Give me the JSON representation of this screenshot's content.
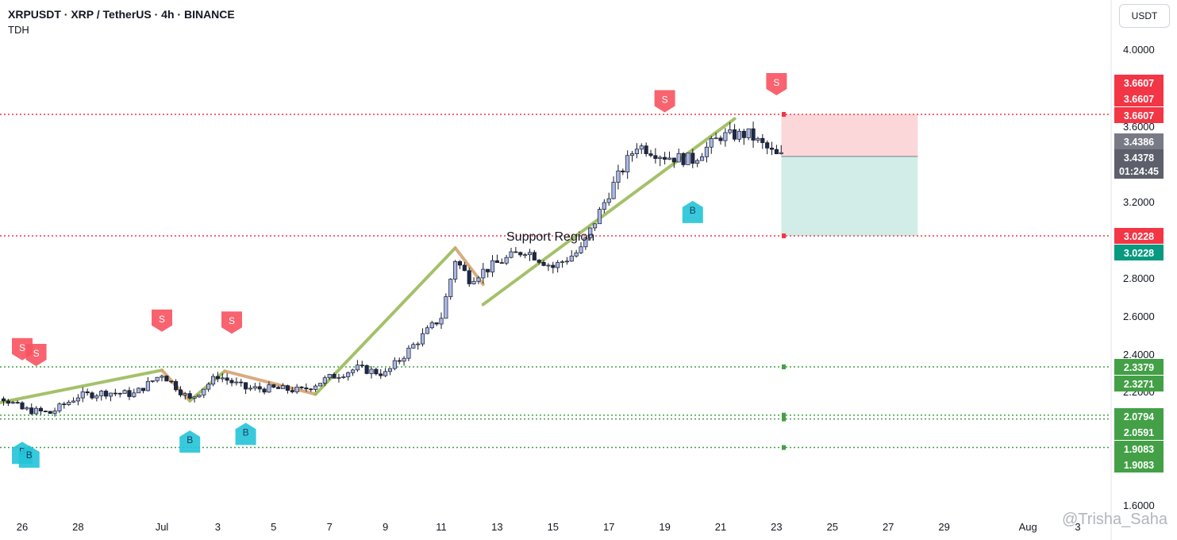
{
  "header": {
    "title": "XRPUSDT · XRP / TetherUS · 4h · BINANCE",
    "indicator": "TDH"
  },
  "axis": {
    "unit_label": "USDT"
  },
  "watermark": "@Trisha_Saha",
  "chart_data": {
    "type": "candlestick",
    "symbol": "XRPUSDT",
    "timeframe": "4h",
    "exchange": "BINANCE",
    "x_ticks": [
      "26",
      "28",
      "Jul",
      "3",
      "5",
      "7",
      "9",
      "11",
      "13",
      "15",
      "17",
      "19",
      "21",
      "23",
      "25",
      "27",
      "29",
      "Aug",
      "3"
    ],
    "y_ticks": [
      "4.0000",
      "3.6000",
      "3.2000",
      "2.8000",
      "2.6000",
      "2.4000",
      "2.2000",
      "1.6000"
    ],
    "y_range": [
      1.55,
      4.1
    ],
    "price_path": [
      [
        "Jun 24",
        2.195
      ],
      [
        "Jun 25",
        2.2
      ],
      [
        "Jun 26",
        2.11
      ],
      [
        "Jun 27",
        2.09
      ],
      [
        "Jun 28",
        2.18
      ],
      [
        "Jun 29",
        2.2
      ],
      [
        "Jun 30",
        2.19
      ],
      [
        "Jul 1",
        2.3
      ],
      [
        "Jul 2",
        2.16
      ],
      [
        "Jul 3",
        2.29
      ],
      [
        "Jul 4",
        2.22
      ],
      [
        "Jul 5",
        2.22
      ],
      [
        "Jul 6",
        2.21
      ],
      [
        "Jul 7",
        2.28
      ],
      [
        "Jul 8",
        2.33
      ],
      [
        "Jul 9",
        2.3
      ],
      [
        "Jul 10",
        2.45
      ],
      [
        "Jul 11",
        2.6
      ],
      [
        "Jul 11 12:00",
        2.9
      ],
      [
        "Jul 12",
        2.8
      ],
      [
        "Jul 13",
        2.88
      ],
      [
        "Jul 14",
        2.95
      ],
      [
        "Jul 15",
        2.86
      ],
      [
        "Jul 16",
        2.95
      ],
      [
        "Jul 17",
        3.25
      ],
      [
        "Jul 18",
        3.5
      ],
      [
        "Jul 19",
        3.44
      ],
      [
        "Jul 20",
        3.42
      ],
      [
        "Jul 21",
        3.55
      ],
      [
        "Jul 22",
        3.56
      ],
      [
        "Jul 23",
        3.44
      ]
    ],
    "price_labels": [
      {
        "value": "3.6607",
        "color": "#f23645"
      },
      {
        "value": "3.6607",
        "color": "#f23645"
      },
      {
        "value": "3.6607",
        "color": "#f23645"
      },
      {
        "value": "3.4386",
        "color": "#787b86"
      },
      {
        "value": "3.4378",
        "color": "#5d606b"
      },
      {
        "value": "01:24:45",
        "color": "#5d606b"
      },
      {
        "value": "3.0228",
        "color": "#f23645"
      },
      {
        "value": "3.0228",
        "color": "#089981"
      },
      {
        "value": "2.3379",
        "color": "#43a047"
      },
      {
        "value": "2.3271",
        "color": "#43a047"
      },
      {
        "value": "2.0794",
        "color": "#43a047"
      },
      {
        "value": "2.0591",
        "color": "#43a047"
      },
      {
        "value": "1.9083",
        "color": "#43a047"
      },
      {
        "value": "1.9083",
        "color": "#43a047"
      }
    ],
    "horizontal_levels": [
      {
        "price": 3.6607,
        "style": "dotted",
        "color": "#f23645"
      },
      {
        "price": 3.0228,
        "style": "dotted",
        "color": "#f23645"
      },
      {
        "price": 2.3379,
        "style": "dotted",
        "color": "#43a047"
      },
      {
        "price": 2.0794,
        "style": "dotted",
        "color": "#43a047"
      },
      {
        "price": 2.0591,
        "style": "dotted",
        "color": "#43a047"
      },
      {
        "price": 1.9083,
        "style": "dotted",
        "color": "#43a047"
      }
    ],
    "annotations": [
      {
        "text": "Support Region",
        "date": "Jul 14",
        "price": 3.0
      }
    ],
    "position_box": {
      "entry": 3.4378,
      "stop": 3.6607,
      "target": 3.0228,
      "start": "Jul 23",
      "end": "Jul 28"
    },
    "signals": [
      {
        "label": "S",
        "type": "sell",
        "date": "Jun 26",
        "price": 2.43
      },
      {
        "label": "S",
        "type": "sell",
        "date": "Jun 26 12:00",
        "price": 2.4
      },
      {
        "label": "S",
        "type": "sell",
        "date": "Jul 1",
        "price": 2.58
      },
      {
        "label": "S",
        "type": "sell",
        "date": "Jul 3 12:00",
        "price": 2.57
      },
      {
        "label": "S",
        "type": "sell",
        "date": "Jul 19",
        "price": 3.73
      },
      {
        "label": "S",
        "type": "sell",
        "date": "Jul 23",
        "price": 3.82
      },
      {
        "label": "B",
        "type": "buy",
        "date": "Jun 24",
        "price": 1.93
      },
      {
        "label": "B",
        "type": "buy",
        "date": "Jun 26",
        "price": 1.88
      },
      {
        "label": "B",
        "type": "buy",
        "date": "Jun 26 06:00",
        "price": 1.86
      },
      {
        "label": "B",
        "type": "buy",
        "date": "Jul 2",
        "price": 1.94
      },
      {
        "label": "B",
        "type": "buy",
        "date": "Jul 4",
        "price": 1.98
      },
      {
        "label": "B",
        "type": "buy",
        "date": "Jul 20",
        "price": 3.15
      }
    ],
    "trend_segments": [
      {
        "from": [
          "Jun 24",
          2.11
        ],
        "to": [
          "Jul 1",
          2.32
        ],
        "color": "#9bbb59"
      },
      {
        "from": [
          "Jul 1",
          2.32
        ],
        "to": [
          "Jul 2",
          2.155
        ],
        "color": "#d4a373"
      },
      {
        "from": [
          "Jul 2",
          2.155
        ],
        "to": [
          "Jul 3 06:00",
          2.315
        ],
        "color": "#9bbb59"
      },
      {
        "from": [
          "Jul 3 06:00",
          2.315
        ],
        "to": [
          "Jul 6 12:00",
          2.19
        ],
        "color": "#d4a373"
      },
      {
        "from": [
          "Jul 6 12:00",
          2.19
        ],
        "to": [
          "Jul 11 12:00",
          2.96
        ],
        "color": "#9bbb59"
      },
      {
        "from": [
          "Jul 11 12:00",
          2.96
        ],
        "to": [
          "Jul 12 12:00",
          2.77
        ],
        "color": "#d4a373"
      },
      {
        "from": [
          "Jul 12 12:00",
          2.665
        ],
        "to": [
          "Jul 21 12:00",
          3.64
        ],
        "color": "#9bbb59"
      }
    ]
  }
}
